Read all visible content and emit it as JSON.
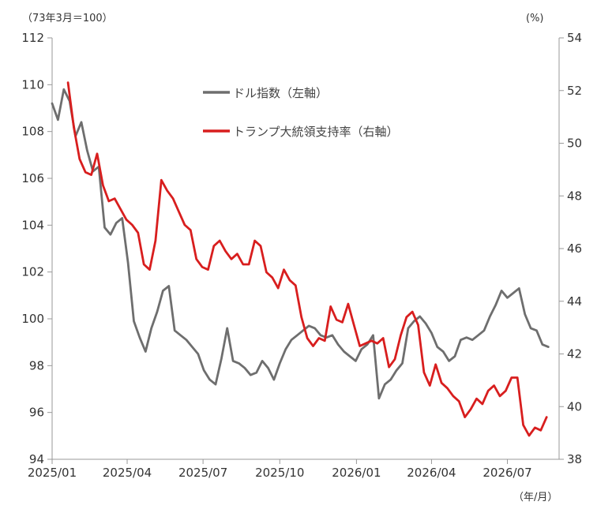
{
  "chart_data": {
    "type": "line",
    "left_axis_unit": "（73年3月＝100）",
    "right_axis_unit": "(%)",
    "x_unit": "（年/月）",
    "x_ticks": [
      "2025/01",
      "2025/04",
      "2025/07",
      "2025/10",
      "2026/01",
      "2026/04",
      "2026/07"
    ],
    "y_left": {
      "min": 94,
      "max": 112,
      "ticks": [
        94,
        96,
        98,
        100,
        102,
        104,
        106,
        108,
        110,
        112
      ]
    },
    "y_right": {
      "min": 38,
      "max": 54,
      "ticks": [
        38,
        40,
        42,
        44,
        46,
        48,
        50,
        52,
        54
      ]
    },
    "legend_position": "upper-middle",
    "grid": false,
    "series": [
      {
        "name": "ドル指数（左軸）",
        "axis": "left",
        "color": "#6e6e6e",
        "x": [
          "2025/01/01",
          "2025/01/08",
          "2025/01/15",
          "2025/01/22",
          "2025/01/29",
          "2025/02/05",
          "2025/02/12",
          "2025/02/19",
          "2025/02/26",
          "2025/03/05",
          "2025/03/12",
          "2025/03/19",
          "2025/03/26",
          "2025/04/02",
          "2025/04/09",
          "2025/04/16",
          "2025/04/23",
          "2025/04/30",
          "2025/05/07",
          "2025/05/14",
          "2025/05/21",
          "2025/05/28",
          "2025/06/04",
          "2025/06/11",
          "2025/06/18",
          "2025/06/25",
          "2025/07/02",
          "2025/07/09",
          "2025/07/16",
          "2025/07/23",
          "2025/07/30",
          "2025/08/06",
          "2025/08/13",
          "2025/08/20",
          "2025/08/27",
          "2025/09/03",
          "2025/09/10",
          "2025/09/17",
          "2025/09/24",
          "2025/10/01",
          "2025/10/08",
          "2025/10/15",
          "2025/10/22",
          "2025/10/29",
          "2025/11/05",
          "2025/11/12",
          "2025/11/19",
          "2025/11/26",
          "2025/12/03",
          "2025/12/10",
          "2025/12/17",
          "2025/12/24",
          "2025/12/31",
          "2026/01/07",
          "2026/01/14",
          "2026/01/21",
          "2026/01/28",
          "2026/02/04",
          "2026/02/11",
          "2026/02/18",
          "2026/02/25",
          "2026/03/04",
          "2026/03/11",
          "2026/03/18",
          "2026/03/25",
          "2026/04/01",
          "2026/04/08",
          "2026/04/15",
          "2026/04/22",
          "2026/04/29",
          "2026/05/06",
          "2026/05/13",
          "2026/05/20",
          "2026/05/27",
          "2026/06/03",
          "2026/06/10",
          "2026/06/17",
          "2026/06/24",
          "2026/07/01",
          "2026/07/08",
          "2026/07/15",
          "2026/07/22",
          "2026/07/29",
          "2026/08/05",
          "2026/08/12",
          "2026/08/19"
        ],
        "values": [
          109.2,
          108.5,
          109.8,
          109.3,
          107.8,
          108.4,
          107.2,
          106.3,
          106.5,
          103.9,
          103.6,
          104.1,
          104.3,
          102.4,
          99.9,
          99.2,
          98.6,
          99.6,
          100.3,
          101.2,
          101.4,
          99.5,
          99.3,
          99.1,
          98.8,
          98.5,
          97.8,
          97.4,
          97.2,
          98.3,
          99.6,
          98.2,
          98.1,
          97.9,
          97.6,
          97.7,
          98.2,
          97.9,
          97.4,
          98.1,
          98.7,
          99.1,
          99.3,
          99.5,
          99.7,
          99.6,
          99.3,
          99.2,
          99.3,
          98.9,
          98.6,
          98.4,
          98.2,
          98.7,
          98.9,
          99.3,
          96.6,
          97.2,
          97.4,
          97.8,
          98.1,
          99.6,
          99.9,
          100.1,
          99.8,
          99.4,
          98.8,
          98.6,
          98.2,
          98.4,
          99.1,
          99.2,
          99.1,
          99.3,
          99.5,
          100.1,
          100.6,
          101.2,
          100.9,
          101.1,
          101.3,
          100.2,
          99.6,
          99.5,
          98.9,
          98.8
        ]
      },
      {
        "name": "トランプ大統領支持率（右軸）",
        "axis": "right",
        "color": "#d81e1e",
        "x": [
          "2025/01/20",
          "2025/01/27",
          "2025/02/03",
          "2025/02/10",
          "2025/02/17",
          "2025/02/24",
          "2025/03/03",
          "2025/03/10",
          "2025/03/17",
          "2025/03/24",
          "2025/03/31",
          "2025/04/07",
          "2025/04/14",
          "2025/04/21",
          "2025/04/28",
          "2025/05/05",
          "2025/05/12",
          "2025/05/19",
          "2025/05/26",
          "2025/06/02",
          "2025/06/09",
          "2025/06/16",
          "2025/06/23",
          "2025/06/30",
          "2025/07/07",
          "2025/07/14",
          "2025/07/21",
          "2025/07/28",
          "2025/08/04",
          "2025/08/11",
          "2025/08/18",
          "2025/08/25",
          "2025/09/01",
          "2025/09/08",
          "2025/09/15",
          "2025/09/22",
          "2025/09/29",
          "2025/10/06",
          "2025/10/13",
          "2025/10/20",
          "2025/10/27",
          "2025/11/03",
          "2025/11/10",
          "2025/11/17",
          "2025/11/24",
          "2025/12/01",
          "2025/12/08",
          "2025/12/15",
          "2025/12/22",
          "2025/12/29",
          "2026/01/05",
          "2026/01/12",
          "2026/01/19",
          "2026/01/26",
          "2026/02/02",
          "2026/02/09",
          "2026/02/16",
          "2026/02/23",
          "2026/03/02",
          "2026/03/09",
          "2026/03/16",
          "2026/03/23",
          "2026/03/30",
          "2026/04/06",
          "2026/04/13",
          "2026/04/20",
          "2026/04/27",
          "2026/05/04",
          "2026/05/11",
          "2026/05/18",
          "2026/05/25",
          "2026/06/01",
          "2026/06/08",
          "2026/06/15",
          "2026/06/22",
          "2026/06/29",
          "2026/07/06",
          "2026/07/13",
          "2026/07/20",
          "2026/07/27",
          "2026/08/03",
          "2026/08/10",
          "2026/08/17"
        ],
        "values": [
          52.3,
          50.6,
          49.4,
          48.9,
          48.8,
          49.6,
          48.4,
          47.8,
          47.9,
          47.5,
          47.1,
          46.9,
          46.6,
          45.4,
          45.2,
          46.3,
          48.6,
          48.2,
          47.9,
          47.4,
          46.9,
          46.7,
          45.6,
          45.3,
          45.2,
          46.1,
          46.3,
          45.9,
          45.6,
          45.8,
          45.4,
          45.4,
          46.3,
          46.1,
          45.1,
          44.9,
          44.5,
          45.2,
          44.8,
          44.6,
          43.4,
          42.6,
          42.3,
          42.6,
          42.5,
          43.8,
          43.3,
          43.2,
          43.9,
          43.1,
          42.3,
          42.4,
          42.5,
          42.4,
          42.6,
          41.5,
          41.8,
          42.7,
          43.4,
          43.6,
          43.1,
          41.3,
          40.8,
          41.6,
          40.9,
          40.7,
          40.4,
          40.2,
          39.6,
          39.9,
          40.3,
          40.1,
          40.6,
          40.8,
          40.4,
          40.6,
          41.1,
          41.1,
          39.3,
          38.9,
          39.2,
          39.1,
          39.6
        ]
      }
    ]
  }
}
